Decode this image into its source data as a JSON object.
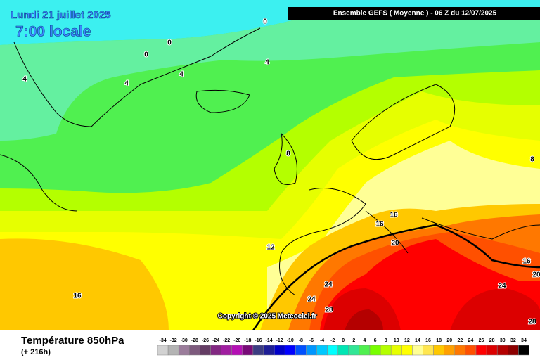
{
  "header": {
    "date": "Lundi 21 juillet 2025",
    "time": "7:00 locale",
    "model": "Ensemble GEFS  ( Moyenne )  -  06 Z du 12/07/2025"
  },
  "copyright": "Copyright © 2025 Meteociel.fr",
  "footer": {
    "title": "Température 850hPa",
    "lead": "(+ 216h)"
  },
  "contour_labels": [
    0,
    0,
    0,
    4,
    4,
    4,
    4,
    8,
    8,
    12,
    16,
    16,
    16,
    16,
    20,
    20,
    24,
    24,
    24,
    28,
    28
  ],
  "scale": {
    "values": [
      -34,
      -32,
      -30,
      -28,
      -26,
      -24,
      -22,
      -20,
      -18,
      -16,
      -14,
      -12,
      -10,
      -8,
      -6,
      -4,
      -2,
      0,
      2,
      4,
      6,
      8,
      10,
      12,
      14,
      16,
      18,
      20,
      22,
      24,
      26,
      28,
      30,
      32,
      34
    ],
    "colors": [
      "#d2d2d2",
      "#b4b4b4",
      "#9b7d9b",
      "#7d5a7d",
      "#643c64",
      "#822882",
      "#a01ea0",
      "#b40fb4",
      "#780a78",
      "#3c3c82",
      "#1e1e96",
      "#0000c8",
      "#0000ff",
      "#0050ff",
      "#0096ff",
      "#00c8ff",
      "#00ffff",
      "#00e6b4",
      "#32e696",
      "#50f050",
      "#78ff00",
      "#b4ff00",
      "#e6ff00",
      "#ffff00",
      "#ffff96",
      "#ffe650",
      "#ffc800",
      "#ffa000",
      "#ff7800",
      "#ff5000",
      "#ff0000",
      "#dc0000",
      "#b40000",
      "#8c0000",
      "#000000"
    ]
  }
}
